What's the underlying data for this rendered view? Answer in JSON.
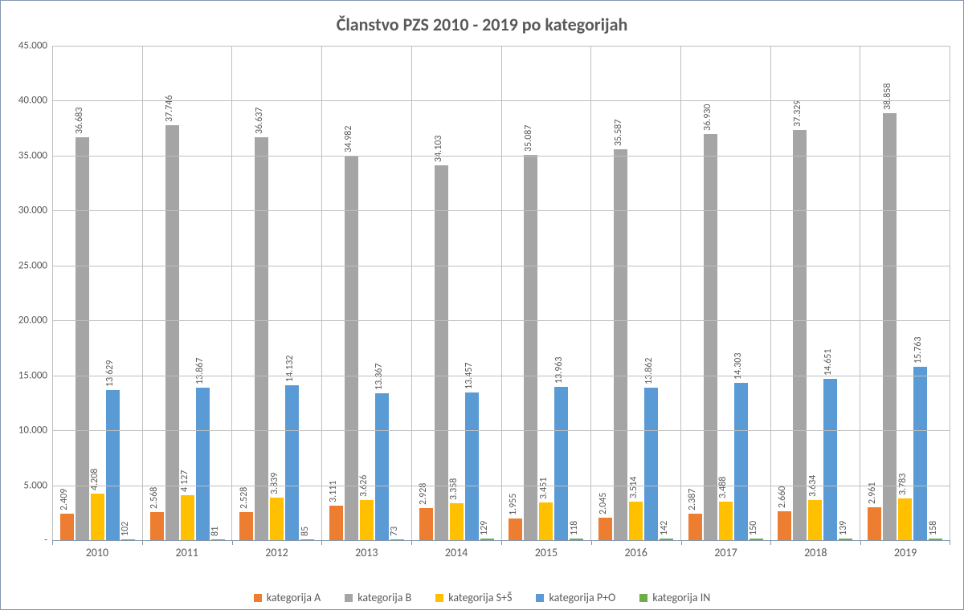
{
  "chart": {
    "type": "bar",
    "title": "Članstvo PZS 2010 - 2019 po kategorijah",
    "title_fontsize": 22,
    "title_color": "#595959",
    "background_color": "#ffffff",
    "border_color": "#8497b0",
    "grid_color": "#bfbfbf",
    "label_color": "#595959",
    "label_fontsize": 13,
    "datalabel_fontsize": 12,
    "datalabel_rotation": -90,
    "ylim": [
      0,
      45000
    ],
    "ytick_step": 5000,
    "yticks": [
      0,
      5000,
      10000,
      15000,
      20000,
      25000,
      30000,
      35000,
      40000,
      45000
    ],
    "ytick_labels": [
      "-",
      "5.000",
      "10.000",
      "15.000",
      "20.000",
      "25.000",
      "30.000",
      "35.000",
      "40.000",
      "45.000"
    ],
    "thousands_separator": ".",
    "categories": [
      "2010",
      "2011",
      "2012",
      "2013",
      "2014",
      "2015",
      "2016",
      "2017",
      "2018",
      "2019"
    ],
    "series": [
      {
        "name": "kategorija A",
        "color": "#ed7d31",
        "values": [
          2409,
          2568,
          2528,
          3111,
          2928,
          1955,
          2045,
          2387,
          2660,
          2961
        ]
      },
      {
        "name": "kategorija B",
        "color": "#a5a5a5",
        "values": [
          36683,
          37746,
          36637,
          34982,
          34103,
          35087,
          35587,
          36930,
          37329,
          38858
        ]
      },
      {
        "name": "kategorija S+Š",
        "color": "#ffc000",
        "values": [
          4208,
          4127,
          3839,
          3626,
          3358,
          3451,
          3514,
          3488,
          3634,
          3783
        ]
      },
      {
        "name": "kategorija P+O",
        "color": "#5b9bd5",
        "values": [
          13629,
          13867,
          14132,
          13367,
          13457,
          13963,
          13862,
          14303,
          14651,
          15763
        ]
      },
      {
        "name": "kategorija IN",
        "color": "#70ad47",
        "values": [
          102,
          81,
          85,
          73,
          129,
          118,
          142,
          150,
          139,
          158
        ]
      }
    ],
    "legend_position": "bottom",
    "bar_gap_pct": 16
  }
}
